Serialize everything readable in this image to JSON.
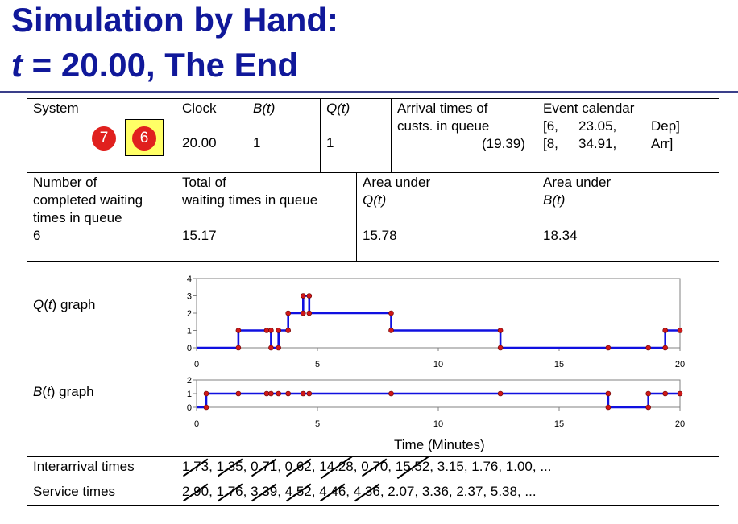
{
  "title": {
    "line1": "Simulation by Hand:",
    "line2_var": "t",
    "line2_rest": " = 20.00, The End"
  },
  "system": {
    "label": "System",
    "queue_customer": "7",
    "server_customer": "6"
  },
  "clock": {
    "label": "Clock",
    "value": "20.00"
  },
  "bt": {
    "label": "B(t)",
    "value": "1"
  },
  "qt": {
    "label": "Q(t)",
    "value": "1"
  },
  "arrival": {
    "label1": "Arrival times of",
    "label2": "custs. in queue",
    "value": "(19.39)"
  },
  "calendar": {
    "label": "Event calendar",
    "events": [
      {
        "id": "[6,",
        "time": "23.05,",
        "type": "Dep]"
      },
      {
        "id": "[8,",
        "time": "34.91,",
        "type": "Arr]"
      }
    ]
  },
  "stats": {
    "completed": {
      "line1": "Number of",
      "line2": "completed waiting",
      "line3": "times in queue",
      "value": "6"
    },
    "total_wait": {
      "line1": "Total of",
      "line2": "waiting times in queue",
      "value": "15.17"
    },
    "area_q": {
      "line1": "Area under",
      "line2": "Q(t)",
      "value": "15.78"
    },
    "area_b": {
      "line1": "Area under",
      "line2": "B(t)",
      "value": "18.34"
    }
  },
  "graph_labels": {
    "q": "Q(t) graph",
    "b": "B(t) graph"
  },
  "chart_data": [
    {
      "type": "line",
      "name": "Q(t)",
      "step": true,
      "x": [
        0,
        1.73,
        3.08,
        3.39,
        3.79,
        4.41,
        4.66,
        8.05,
        12.57,
        17.03,
        18.69,
        19.39,
        20
      ],
      "y": [
        0,
        1,
        0,
        1,
        2,
        3,
        2,
        1,
        0,
        0,
        0,
        1,
        1
      ],
      "events_x": [
        1.73,
        2.9,
        3.08,
        3.39,
        3.79,
        4.41,
        4.66,
        8.05,
        12.57,
        17.03,
        18.69,
        19.39,
        20
      ],
      "xlim": [
        0,
        20
      ],
      "ylim": [
        0,
        4
      ],
      "xticks": [
        "0",
        "5",
        "10",
        "15",
        "20"
      ],
      "yticks": [
        "0",
        "1",
        "2",
        "3",
        "4"
      ]
    },
    {
      "type": "line",
      "name": "B(t)",
      "step": true,
      "x": [
        0,
        0.4,
        17.03,
        18.69,
        20
      ],
      "y": [
        0,
        1,
        0,
        1,
        1
      ],
      "events_x": [
        0.4,
        1.73,
        2.9,
        3.08,
        3.39,
        3.79,
        4.41,
        4.66,
        8.05,
        12.57,
        17.03,
        18.69,
        19.39,
        20
      ],
      "xlim": [
        0,
        20
      ],
      "ylim": [
        0,
        2
      ],
      "xticks": [
        "0",
        "5",
        "10",
        "15",
        "20"
      ],
      "yticks": [
        "0",
        "1",
        "2"
      ],
      "xlabel": "Time (Minutes)"
    }
  ],
  "interarrival": {
    "label": "Interarrival times",
    "crossed": [
      "1.73",
      "1.35",
      "0.71",
      "0.62",
      "14.28",
      "0.70",
      "15.52"
    ],
    "rest": "3.15, 1.76, 1.00, ..."
  },
  "service": {
    "label": "Service times",
    "crossed": [
      "2.90",
      "1.76",
      "3.39",
      "4.52",
      "4.46",
      "4.36"
    ],
    "rest": "2.07, 3.36, 2.37, 5.38, ..."
  }
}
